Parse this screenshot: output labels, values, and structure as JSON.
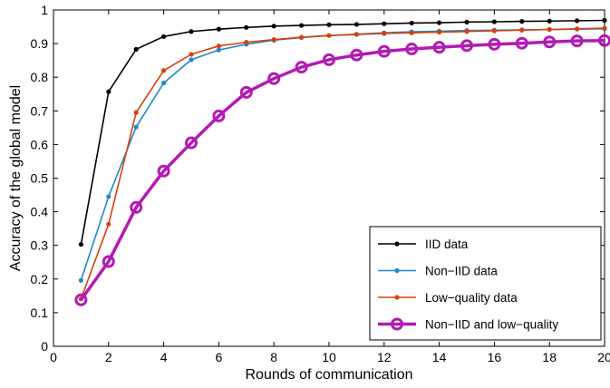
{
  "chart_data": {
    "type": "line",
    "title": "",
    "xlabel": "Rounds of communication",
    "ylabel": "Accuracy of the global model",
    "xlim": [
      0,
      20
    ],
    "ylim": [
      0,
      1
    ],
    "xticks": [
      0,
      2,
      4,
      6,
      8,
      10,
      12,
      14,
      16,
      18,
      20
    ],
    "yticks": [
      0,
      0.1,
      0.2,
      0.3,
      0.4,
      0.5,
      0.6,
      0.7,
      0.8,
      0.9,
      1
    ],
    "x": [
      1,
      2,
      3,
      4,
      5,
      6,
      7,
      8,
      9,
      10,
      11,
      12,
      13,
      14,
      15,
      16,
      17,
      18,
      19,
      20
    ],
    "grid": false,
    "legend_position": "bottom-right",
    "series": [
      {
        "name": "IID data",
        "color": "#000000",
        "marker": "dot",
        "values": [
          0.303,
          0.757,
          0.883,
          0.921,
          0.936,
          0.943,
          0.948,
          0.952,
          0.954,
          0.956,
          0.957,
          0.959,
          0.961,
          0.962,
          0.964,
          0.965,
          0.966,
          0.967,
          0.968,
          0.969
        ]
      },
      {
        "name": "Non−IID data",
        "color": "#1f8ac8",
        "marker": "dot",
        "values": [
          0.196,
          0.445,
          0.652,
          0.783,
          0.852,
          0.881,
          0.898,
          0.91,
          0.918,
          0.924,
          0.928,
          0.932,
          0.935,
          0.937,
          0.939,
          0.94,
          0.941,
          0.942,
          0.943,
          0.944
        ]
      },
      {
        "name": "Low−quality data",
        "color": "#d9400e",
        "marker": "dot",
        "values": [
          0.141,
          0.363,
          0.695,
          0.82,
          0.868,
          0.893,
          0.904,
          0.912,
          0.919,
          0.924,
          0.927,
          0.93,
          0.932,
          0.934,
          0.936,
          0.938,
          0.94,
          0.942,
          0.944,
          0.946
        ]
      },
      {
        "name": "Non−IID and low−quality",
        "color": "#b31ab3",
        "marker": "circle",
        "values": [
          0.138,
          0.252,
          0.413,
          0.521,
          0.605,
          0.685,
          0.755,
          0.796,
          0.83,
          0.852,
          0.866,
          0.877,
          0.884,
          0.889,
          0.894,
          0.898,
          0.901,
          0.905,
          0.908,
          0.909
        ]
      }
    ]
  }
}
